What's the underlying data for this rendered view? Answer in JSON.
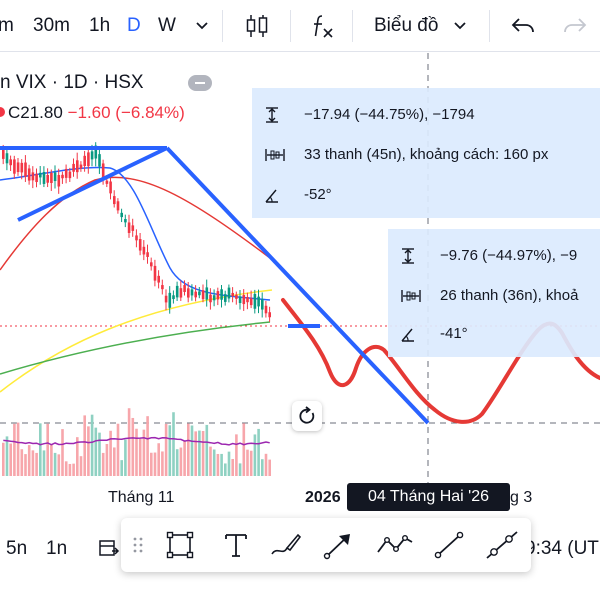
{
  "toolbar": {
    "interval_fragment": "m",
    "intervals": [
      "30m",
      "1h",
      "D",
      "W"
    ],
    "active_interval": "D",
    "chart_menu_label": "Biểu đồ"
  },
  "legend": {
    "title": "n VIX · 1D · HSX",
    "close_fragment": "C21.80",
    "change": "−1.60 (−6.84%)"
  },
  "measure_1": {
    "price_change": "−17.94 (−44.75%), −1794",
    "bars": "33 thanh (45n), khoảng cách: 160 px",
    "angle": "-52°"
  },
  "measure_2": {
    "price_change": "−9.76 (−44.97%), −9",
    "bars": "26 thanh (36n), khoả",
    "angle": "-41°"
  },
  "time_axis": {
    "labels": [
      "Tháng 11",
      "2026",
      "g 3"
    ],
    "cursor_date": "04 Tháng Hai '26"
  },
  "bottom": {
    "range_5n": "5n",
    "range_1n": "1n",
    "clock": "9:34 (UT"
  },
  "drawing_tools": [
    "rectangle-tool",
    "text-tool",
    "brush-tool",
    "arrow-tool",
    "path-tool",
    "trend-line-tool",
    "extended-line-tool"
  ],
  "colors": {
    "accent": "#2962ff",
    "down": "#f23645",
    "up": "#089981",
    "drawing_blue": "#2962ff",
    "drawing_red": "#e53935",
    "measure_bg": "#dbeafe"
  }
}
